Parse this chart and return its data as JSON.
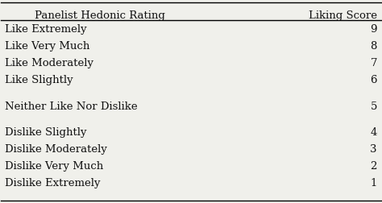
{
  "col1_header": "Panelist Hedonic Rating",
  "col2_header": "Liking Score",
  "rows": [
    [
      "Like Extremely",
      "9"
    ],
    [
      "Like Very Much",
      "8"
    ],
    [
      "Like Moderately",
      "7"
    ],
    [
      "Like Slightly",
      "6"
    ],
    [
      "Neither Like Nor Dislike",
      "5"
    ],
    [
      "Dislike Slightly",
      "4"
    ],
    [
      "Dislike Moderately",
      "3"
    ],
    [
      "Dislike Very Much",
      "2"
    ],
    [
      "Dislike Extremely",
      "1"
    ]
  ],
  "background_color": "#f0f0eb",
  "header_fontsize": 9.5,
  "cell_fontsize": 9.5,
  "header_color": "#111111",
  "cell_color": "#111111",
  "font_family": "serif"
}
